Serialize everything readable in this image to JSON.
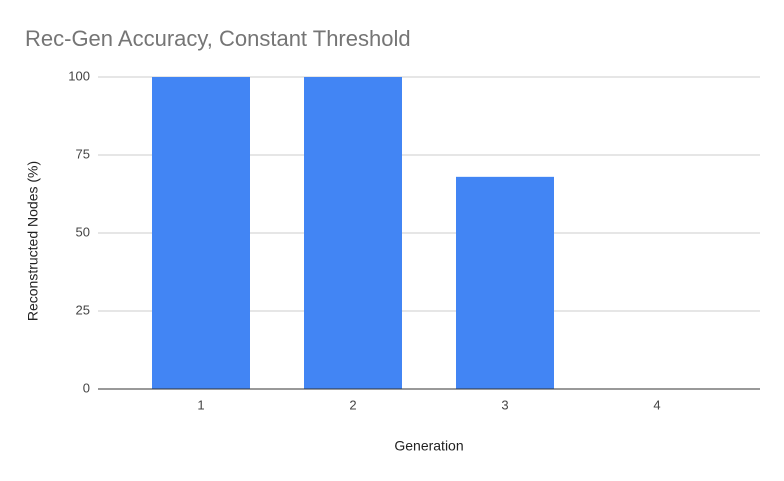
{
  "chart_data": {
    "type": "bar",
    "title": "Rec-Gen Accuracy, Constant Threshold",
    "x_label": "Generation",
    "y_label": "Reconstructed Nodes (%)",
    "categories": [
      "1",
      "2",
      "3",
      "4"
    ],
    "values": [
      100,
      100,
      68,
      0
    ],
    "color": "#4285f4",
    "ylim": [
      0,
      100
    ],
    "yticks": [
      0,
      25,
      50,
      75,
      100
    ],
    "grid": true
  }
}
